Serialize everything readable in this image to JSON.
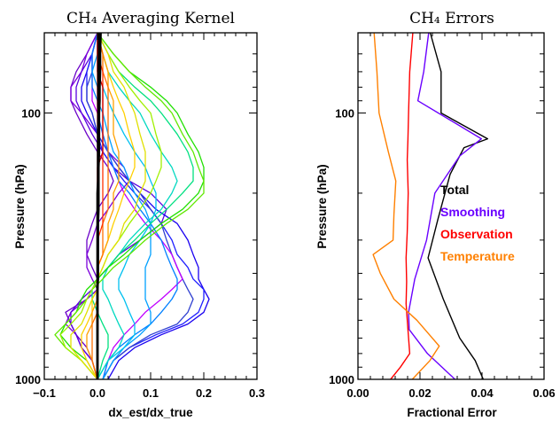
{
  "chart_data": [
    {
      "type": "line",
      "title": "CH₄ Averaging Kernel",
      "xlabel": "dx_est/dx_true",
      "ylabel": "Pressure (hPa)",
      "xlim": [
        -0.1,
        0.3
      ],
      "ylim": [
        1000,
        50
      ],
      "y_scale": "log",
      "x_ticks": [
        "−0.1",
        "0.0",
        "0.1",
        "0.2",
        "0.3"
      ],
      "y_ticks": [
        "100",
        "1000"
      ],
      "levels": [
        50,
        60,
        70,
        80,
        90,
        100,
        120,
        140,
        160,
        180,
        200,
        230,
        260,
        300,
        340,
        380,
        420,
        460,
        500,
        560,
        620,
        680,
        760,
        850,
        1000
      ],
      "series": [
        {
          "color": "#6a00c8",
          "values": [
            0.0,
            -0.02,
            -0.04,
            -0.05,
            -0.05,
            -0.04,
            -0.02,
            0.0,
            0.02,
            0.03,
            0.02,
            0.0,
            -0.01,
            -0.02,
            -0.02,
            -0.01,
            0.0,
            0.0,
            -0.02,
            -0.06,
            -0.05,
            -0.04,
            -0.02,
            -0.01,
            0.0
          ]
        },
        {
          "color": "#7d00dc",
          "values": [
            0.0,
            -0.02,
            -0.03,
            -0.05,
            -0.05,
            -0.03,
            0.0,
            0.02,
            0.05,
            0.06,
            0.04,
            0.02,
            0.0,
            -0.01,
            -0.02,
            -0.02,
            -0.01,
            0.0,
            -0.02,
            -0.05,
            -0.06,
            -0.04,
            -0.03,
            -0.01,
            0.0
          ]
        },
        {
          "color": "#5a00e0",
          "values": [
            0.0,
            -0.01,
            -0.03,
            -0.04,
            -0.04,
            -0.03,
            -0.01,
            0.01,
            0.03,
            0.06,
            0.1,
            0.13,
            0.12,
            0.08,
            0.04,
            0.02,
            0.0,
            -0.01,
            -0.03,
            -0.05,
            -0.05,
            -0.04,
            -0.03,
            -0.01,
            0.0
          ]
        },
        {
          "color": "#1a00f0",
          "values": [
            0.0,
            -0.01,
            -0.02,
            -0.03,
            -0.03,
            -0.02,
            0.0,
            0.02,
            0.04,
            0.06,
            0.08,
            0.11,
            0.15,
            0.17,
            0.18,
            0.19,
            0.19,
            0.2,
            0.21,
            0.2,
            0.17,
            0.12,
            0.07,
            0.04,
            0.02
          ]
        },
        {
          "color": "#2020ff",
          "values": [
            0.0,
            -0.01,
            -0.02,
            -0.02,
            -0.02,
            -0.01,
            0.0,
            0.01,
            0.03,
            0.05,
            0.07,
            0.1,
            0.12,
            0.14,
            0.15,
            0.17,
            0.18,
            0.2,
            0.2,
            0.19,
            0.16,
            0.11,
            0.06,
            0.03,
            0.01
          ]
        },
        {
          "color": "#3040d0",
          "values": [
            0.0,
            -0.01,
            -0.01,
            -0.02,
            -0.02,
            -0.01,
            0.0,
            0.02,
            0.04,
            0.06,
            0.08,
            0.1,
            0.12,
            0.13,
            0.14,
            0.15,
            0.16,
            0.17,
            0.18,
            0.17,
            0.15,
            0.1,
            0.06,
            0.03,
            0.01
          ]
        },
        {
          "color": "#c000ff",
          "values": [
            0.0,
            -0.01,
            -0.01,
            -0.01,
            -0.01,
            0.0,
            0.01,
            0.02,
            0.03,
            0.04,
            0.05,
            0.07,
            0.09,
            0.12,
            0.14,
            0.15,
            0.16,
            0.14,
            0.12,
            0.09,
            0.07,
            0.05,
            0.03,
            0.02,
            0.01
          ]
        },
        {
          "color": "#0080ff",
          "values": [
            0.0,
            -0.01,
            -0.01,
            -0.01,
            0.0,
            0.0,
            0.01,
            0.02,
            0.03,
            0.04,
            0.06,
            0.08,
            0.1,
            0.12,
            0.13,
            0.14,
            0.15,
            0.15,
            0.14,
            0.12,
            0.1,
            0.07,
            0.04,
            0.02,
            0.01
          ]
        },
        {
          "color": "#00a0ff",
          "values": [
            0.0,
            0.0,
            -0.01,
            0.0,
            0.0,
            0.01,
            0.02,
            0.03,
            0.05,
            0.06,
            0.07,
            0.09,
            0.1,
            0.1,
            0.1,
            0.09,
            0.09,
            0.09,
            0.09,
            0.1,
            0.1,
            0.08,
            0.05,
            0.03,
            0.01
          ]
        },
        {
          "color": "#00c0f0",
          "values": [
            0.0,
            0.0,
            0.0,
            0.01,
            0.02,
            0.03,
            0.05,
            0.07,
            0.09,
            0.1,
            0.11,
            0.11,
            0.1,
            0.08,
            0.06,
            0.05,
            0.04,
            0.04,
            0.05,
            0.06,
            0.07,
            0.07,
            0.05,
            0.02,
            0.0
          ]
        },
        {
          "color": "#00d8c0",
          "values": [
            0.0,
            0.01,
            0.02,
            0.04,
            0.06,
            0.08,
            0.1,
            0.12,
            0.14,
            0.15,
            0.14,
            0.12,
            0.09,
            0.06,
            0.04,
            0.02,
            0.01,
            0.01,
            0.02,
            0.03,
            0.04,
            0.05,
            0.04,
            0.02,
            0.0
          ]
        },
        {
          "color": "#00e080",
          "values": [
            0.0,
            0.02,
            0.04,
            0.07,
            0.1,
            0.12,
            0.15,
            0.17,
            0.18,
            0.18,
            0.16,
            0.13,
            0.1,
            0.07,
            0.04,
            0.02,
            0.0,
            -0.01,
            -0.01,
            0.0,
            0.01,
            0.02,
            0.02,
            0.01,
            0.0
          ]
        },
        {
          "color": "#20e000",
          "values": [
            0.0,
            0.03,
            0.06,
            0.1,
            0.13,
            0.15,
            0.17,
            0.19,
            0.2,
            0.2,
            0.19,
            0.16,
            0.12,
            0.08,
            0.05,
            0.02,
            0.0,
            -0.02,
            -0.03,
            -0.04,
            -0.06,
            -0.07,
            -0.05,
            -0.02,
            0.0
          ]
        },
        {
          "color": "#60e800",
          "values": [
            0.0,
            0.03,
            0.06,
            0.09,
            0.12,
            0.14,
            0.16,
            0.18,
            0.19,
            0.2,
            0.2,
            0.17,
            0.13,
            0.09,
            0.06,
            0.03,
            0.01,
            -0.01,
            -0.02,
            -0.04,
            -0.06,
            -0.08,
            -0.06,
            -0.03,
            0.0
          ]
        },
        {
          "color": "#a0f000",
          "values": [
            0.0,
            0.02,
            0.04,
            0.06,
            0.08,
            0.1,
            0.11,
            0.12,
            0.12,
            0.11,
            0.1,
            0.08,
            0.06,
            0.04,
            0.02,
            0.01,
            0.0,
            -0.01,
            -0.02,
            -0.03,
            -0.05,
            -0.07,
            -0.06,
            -0.03,
            0.0
          ]
        },
        {
          "color": "#e0e000",
          "values": [
            0.0,
            0.02,
            0.03,
            0.05,
            0.06,
            0.07,
            0.08,
            0.09,
            0.09,
            0.09,
            0.08,
            0.07,
            0.05,
            0.04,
            0.02,
            0.01,
            0.0,
            0.0,
            -0.01,
            -0.02,
            -0.03,
            -0.05,
            -0.05,
            -0.03,
            0.0
          ]
        },
        {
          "color": "#ffd000",
          "values": [
            0.0,
            0.01,
            0.02,
            0.03,
            0.04,
            0.05,
            0.06,
            0.07,
            0.07,
            0.06,
            0.05,
            0.04,
            0.03,
            0.02,
            0.01,
            0.0,
            0.0,
            0.0,
            -0.01,
            -0.01,
            -0.02,
            -0.03,
            -0.03,
            -0.02,
            0.0
          ]
        },
        {
          "color": "#ffa000",
          "values": [
            0.0,
            0.01,
            0.02,
            0.02,
            0.03,
            0.03,
            0.03,
            0.04,
            0.04,
            0.04,
            0.03,
            0.03,
            0.02,
            0.02,
            0.01,
            0.0,
            0.0,
            0.0,
            0.0,
            -0.01,
            -0.01,
            -0.02,
            -0.02,
            -0.01,
            0.0
          ]
        },
        {
          "color": "#ff7000",
          "values": [
            0.0,
            0.01,
            0.01,
            0.02,
            0.02,
            0.02,
            0.02,
            0.02,
            0.02,
            0.02,
            0.02,
            0.02,
            0.01,
            0.01,
            0.01,
            0.0,
            0.0,
            0.0,
            0.0,
            0.0,
            -0.01,
            -0.01,
            -0.01,
            -0.01,
            0.0
          ]
        },
        {
          "color": "#ff3000",
          "values": [
            0.0,
            0.0,
            0.01,
            0.01,
            0.01,
            0.01,
            0.01,
            0.01,
            0.01,
            0.01,
            0.01,
            0.01,
            0.01,
            0.0,
            0.0,
            0.0,
            0.0,
            0.0,
            0.0,
            0.0,
            0.0,
            0.0,
            0.0,
            0.0,
            0.0
          ]
        },
        {
          "color": "#d00000",
          "values": [
            0.0,
            0.0,
            0.0,
            0.01,
            0.01,
            0.01,
            0.01,
            0.01,
            0.0,
            0.0,
            0.0,
            0.0,
            0.0,
            0.0,
            0.0,
            0.0,
            0.0,
            0.0,
            0.0,
            0.0,
            0.0,
            0.0,
            0.0,
            0.0,
            0.0
          ]
        },
        {
          "color": "#900000",
          "values": [
            0.0,
            0.0,
            0.0,
            0.0,
            0.0,
            0.0,
            0.0,
            0.0,
            0.0,
            0.0,
            0.0,
            0.0,
            0.0,
            0.0,
            0.0,
            0.0,
            0.0,
            0.0,
            0.0,
            0.0,
            0.0,
            0.0,
            0.0,
            0.0,
            0.0
          ]
        },
        {
          "color": "#000000",
          "values": [
            0.003,
            0.003,
            0.002,
            0.002,
            0.002,
            0.002,
            0.001,
            0.001,
            0.001,
            0.001,
            0.0,
            0.0,
            0.0,
            0.0,
            0.0,
            0.0,
            0.0,
            0.0,
            0.0,
            0.0,
            0.0,
            0.0,
            0.0,
            0.0,
            0.0
          ]
        },
        {
          "color": "#000000",
          "values": [
            0.006,
            0.005,
            0.005,
            0.004,
            0.004,
            0.003,
            0.003,
            0.003,
            0.002,
            0.002,
            0.002,
            0.002,
            0.001,
            0.001,
            0.001,
            0.001,
            0.001,
            0.0,
            0.0,
            0.0,
            0.0,
            0.0,
            0.0,
            0.0,
            0.0
          ]
        }
      ]
    },
    {
      "type": "line",
      "title": "CH₄ Errors",
      "xlabel": "Fractional Error",
      "ylabel": "Pressure (hPa)",
      "xlim": [
        0.0,
        0.06
      ],
      "ylim": [
        1000,
        50
      ],
      "y_scale": "log",
      "x_ticks": [
        "0.00",
        "0.02",
        "0.04",
        "0.06"
      ],
      "y_ticks": [
        "100",
        "1000"
      ],
      "legend_position": "right",
      "series": [
        {
          "name": "Total",
          "color": "#000000",
          "pressure": [
            50,
            70,
            100,
            125,
            135,
            170,
            250,
            350,
            500,
            700,
            850,
            1000
          ],
          "values": [
            0.0233,
            0.0268,
            0.0268,
            0.0418,
            0.0342,
            0.0297,
            0.0258,
            0.0226,
            0.0275,
            0.0328,
            0.0378,
            0.0404
          ]
        },
        {
          "name": "Smoothing",
          "color": "#6a00ff",
          "pressure": [
            50,
            70,
            90,
            125,
            145,
            200,
            300,
            420,
            560,
            650,
            800,
            1000
          ],
          "values": [
            0.0228,
            0.0212,
            0.0193,
            0.0398,
            0.0328,
            0.0248,
            0.0221,
            0.0183,
            0.0163,
            0.0165,
            0.0224,
            0.0313
          ]
        },
        {
          "name": "Observation",
          "color": "#ff0000",
          "pressure": [
            50,
            70,
            100,
            125,
            150,
            200,
            280,
            350,
            430,
            520,
            650,
            800,
            900,
            1000
          ],
          "values": [
            0.0177,
            0.0167,
            0.0163,
            0.0161,
            0.0159,
            0.0162,
            0.0159,
            0.0155,
            0.0157,
            0.0155,
            0.0161,
            0.0167,
            0.0137,
            0.0105
          ]
        },
        {
          "name": "Temperature",
          "color": "#ff8000",
          "pressure": [
            50,
            70,
            100,
            140,
            180,
            240,
            300,
            340,
            400,
            500,
            600,
            750,
            850,
            1000
          ],
          "values": [
            0.0052,
            0.0061,
            0.0068,
            0.0098,
            0.0122,
            0.0116,
            0.0113,
            0.0049,
            0.0072,
            0.0116,
            0.019,
            0.0262,
            0.0232,
            0.0175
          ]
        }
      ]
    }
  ]
}
